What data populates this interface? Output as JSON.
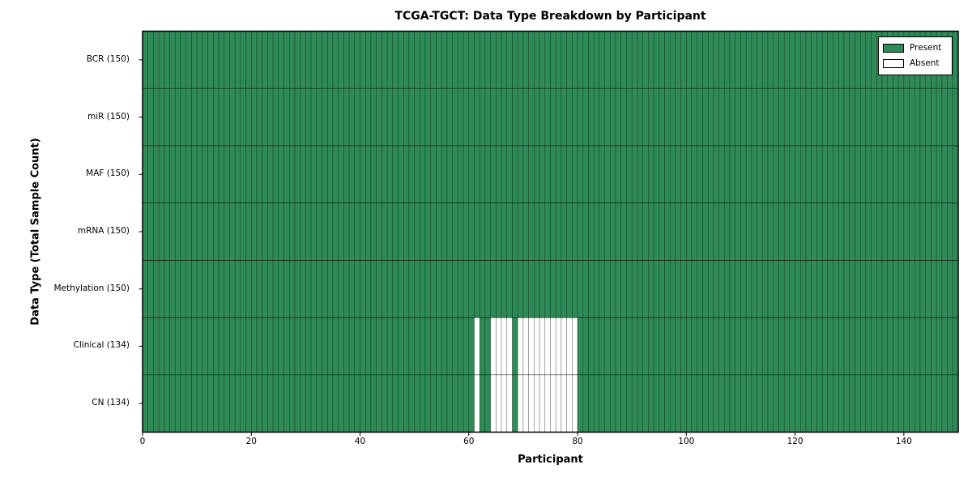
{
  "chart_data": {
    "type": "heatmap",
    "title": "TCGA-TGCT: Data Type Breakdown by Participant",
    "xlabel": "Participant",
    "ylabel": "Data Type (Total Sample Count)",
    "n_participants": 150,
    "xlim": [
      0,
      150
    ],
    "x_ticks": [
      0,
      20,
      40,
      60,
      80,
      100,
      120,
      140
    ],
    "rows": [
      {
        "label": "BCR (150)",
        "data_type": "BCR",
        "present_count": 150,
        "absent_participants": []
      },
      {
        "label": "miR (150)",
        "data_type": "miR",
        "present_count": 150,
        "absent_participants": []
      },
      {
        "label": "MAF (150)",
        "data_type": "MAF",
        "present_count": 150,
        "absent_participants": []
      },
      {
        "label": "mRNA (150)",
        "data_type": "mRNA",
        "present_count": 150,
        "absent_participants": []
      },
      {
        "label": "Methylation (150)",
        "data_type": "Methylation",
        "present_count": 150,
        "absent_participants": []
      },
      {
        "label": "Clinical (134)",
        "data_type": "Clinical",
        "present_count": 134,
        "absent_participants": [
          61,
          64,
          65,
          66,
          67,
          69,
          70,
          71,
          72,
          73,
          74,
          75,
          76,
          77,
          78,
          79
        ]
      },
      {
        "label": "CN (134)",
        "data_type": "CN",
        "present_count": 134,
        "absent_participants": [
          61,
          64,
          65,
          66,
          67,
          69,
          70,
          71,
          72,
          73,
          74,
          75,
          76,
          77,
          78,
          79
        ]
      }
    ],
    "legend": {
      "position": "upper right",
      "entries": [
        {
          "label": "Present",
          "color": "#2E8B57"
        },
        {
          "label": "Absent",
          "color": "#FFFFFF"
        }
      ]
    },
    "colors": {
      "present": "#2E8B57",
      "absent": "#FFFFFF",
      "edge": "#000000",
      "background": "#FFFFFF"
    },
    "grid": true,
    "legend_position": "upper right"
  }
}
